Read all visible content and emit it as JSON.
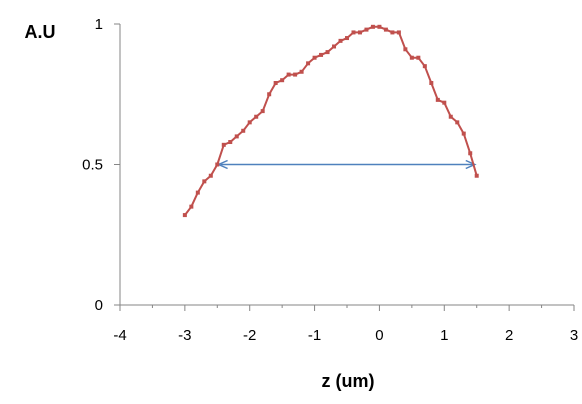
{
  "chart_data": {
    "type": "line",
    "ylabel": "A.U",
    "xlabel": "z (um)",
    "xlim": [
      -4,
      3
    ],
    "ylim": [
      0,
      1
    ],
    "x_ticks": [
      "-4",
      "-3",
      "-2",
      "-1",
      "0",
      "1",
      "2",
      "3"
    ],
    "y_ticks": [
      "0",
      "0.5",
      "1"
    ],
    "grid": false,
    "legend": "none",
    "series_color": "#c0504d",
    "annotation_color": "#4f81bd",
    "series": [
      {
        "x": [
          -3.0,
          -2.9,
          -2.8,
          -2.7,
          -2.6,
          -2.5,
          -2.4,
          -2.3,
          -2.2,
          -2.1,
          -2.0,
          -1.9,
          -1.8,
          -1.7,
          -1.6,
          -1.5,
          -1.4,
          -1.3,
          -1.2,
          -1.1,
          -1.0,
          -0.9,
          -0.8,
          -0.7,
          -0.6,
          -0.5,
          -0.4,
          -0.3,
          -0.2,
          -0.1,
          0.0,
          0.1,
          0.2,
          0.3,
          0.4,
          0.5,
          0.6,
          0.7,
          0.8,
          0.9,
          1.0,
          1.1,
          1.2,
          1.3,
          1.4,
          1.5
        ],
        "y": [
          0.32,
          0.35,
          0.4,
          0.44,
          0.46,
          0.5,
          0.57,
          0.58,
          0.6,
          0.62,
          0.65,
          0.67,
          0.69,
          0.75,
          0.79,
          0.8,
          0.82,
          0.82,
          0.83,
          0.86,
          0.88,
          0.89,
          0.9,
          0.92,
          0.94,
          0.95,
          0.97,
          0.97,
          0.98,
          0.99,
          0.99,
          0.98,
          0.97,
          0.97,
          0.91,
          0.88,
          0.88,
          0.85,
          0.79,
          0.73,
          0.72,
          0.67,
          0.65,
          0.61,
          0.54,
          0.46
        ]
      }
    ],
    "annotation": {
      "type": "double-arrow",
      "x_start": -2.48,
      "x_end": 1.47,
      "y": 0.5
    }
  }
}
